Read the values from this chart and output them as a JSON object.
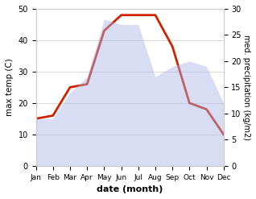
{
  "months": [
    "Jan",
    "Feb",
    "Mar",
    "Apr",
    "May",
    "Jun",
    "Jul",
    "Aug",
    "Sep",
    "Oct",
    "Nov",
    "Dec"
  ],
  "month_x": [
    1,
    2,
    3,
    4,
    5,
    6,
    7,
    8,
    9,
    10,
    11,
    12
  ],
  "precipitation": [
    9,
    9,
    14,
    17,
    28,
    27,
    27,
    17,
    19,
    20,
    19,
    12
  ],
  "temperature": [
    15,
    16,
    25,
    26,
    43,
    48,
    48,
    48,
    38,
    20,
    18,
    10
  ],
  "precip_color": "#aab4e8",
  "temp_color": "#cc2200",
  "ylabel_left": "max temp (C)",
  "ylabel_right": "med. precipitation (kg/m2)",
  "xlabel": "date (month)",
  "ylim_left": [
    0,
    50
  ],
  "ylim_right": [
    0,
    30
  ],
  "background_color": "#ffffff",
  "grid_color": "#cccccc",
  "left_ticks": [
    0,
    10,
    20,
    30,
    40,
    50
  ],
  "right_ticks": [
    0,
    5,
    10,
    15,
    20,
    25,
    30
  ]
}
